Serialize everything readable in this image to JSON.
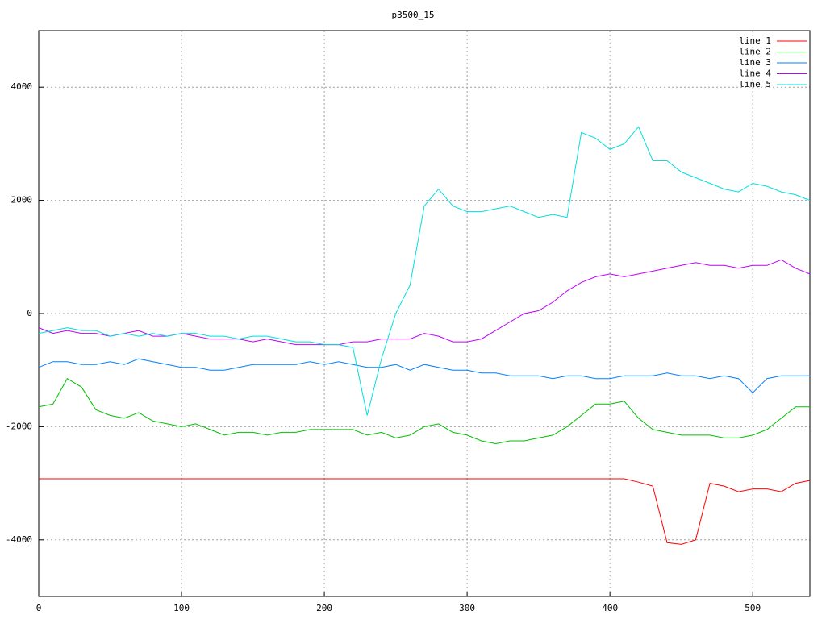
{
  "chart_data": {
    "type": "line",
    "title": "p3500_15",
    "x": [
      0,
      10,
      20,
      30,
      40,
      50,
      60,
      70,
      80,
      90,
      100,
      110,
      120,
      130,
      140,
      150,
      160,
      170,
      180,
      190,
      200,
      210,
      220,
      230,
      240,
      250,
      260,
      270,
      280,
      290,
      300,
      310,
      320,
      330,
      340,
      350,
      360,
      370,
      380,
      390,
      400,
      410,
      420,
      430,
      440,
      450,
      460,
      470,
      480,
      490,
      500,
      510,
      520,
      530,
      540
    ],
    "xlim": [
      0,
      540
    ],
    "xticks": [
      0,
      100,
      200,
      300,
      400,
      500
    ],
    "ylim": [
      -5000,
      5000
    ],
    "yticks": [
      -4000,
      -2000,
      0,
      2000,
      4000
    ],
    "grid": true,
    "legend": "top-right",
    "series": [
      {
        "name": "line 1",
        "color": "#ff0000",
        "values": [
          -2920,
          -2920,
          -2920,
          -2920,
          -2920,
          -2920,
          -2920,
          -2920,
          -2920,
          -2920,
          -2920,
          -2920,
          -2920,
          -2920,
          -2920,
          -2920,
          -2920,
          -2920,
          -2920,
          -2920,
          -2920,
          -2920,
          -2920,
          -2920,
          -2920,
          -2920,
          -2920,
          -2920,
          -2920,
          -2920,
          -2920,
          -2920,
          -2920,
          -2920,
          -2920,
          -2920,
          -2920,
          -2920,
          -2920,
          -2920,
          -2920,
          -2920,
          -2980,
          -3050,
          -4050,
          -4080,
          -4000,
          -3000,
          -3050,
          -3150,
          -3100,
          -3100,
          -3150,
          -3000,
          -2950
        ]
      },
      {
        "name": "line 2",
        "color": "#00c000",
        "values": [
          -1650,
          -1600,
          -1150,
          -1300,
          -1700,
          -1800,
          -1850,
          -1750,
          -1900,
          -1950,
          -2000,
          -1950,
          -2050,
          -2150,
          -2100,
          -2100,
          -2150,
          -2100,
          -2100,
          -2050,
          -2050,
          -2050,
          -2050,
          -2150,
          -2100,
          -2200,
          -2150,
          -2000,
          -1950,
          -2100,
          -2150,
          -2250,
          -2300,
          -2250,
          -2250,
          -2200,
          -2150,
          -2000,
          -1800,
          -1600,
          -1600,
          -1550,
          -1850,
          -2050,
          -2100,
          -2150,
          -2150,
          -2150,
          -2200,
          -2200,
          -2150,
          -2050,
          -1850,
          -1650,
          -1650
        ]
      },
      {
        "name": "line 3",
        "color": "#0080ff",
        "values": [
          -950,
          -850,
          -850,
          -900,
          -900,
          -850,
          -900,
          -800,
          -850,
          -900,
          -950,
          -950,
          -1000,
          -1000,
          -950,
          -900,
          -900,
          -900,
          -900,
          -850,
          -900,
          -850,
          -900,
          -950,
          -950,
          -900,
          -1000,
          -900,
          -950,
          -1000,
          -1000,
          -1050,
          -1050,
          -1100,
          -1100,
          -1100,
          -1150,
          -1100,
          -1100,
          -1150,
          -1150,
          -1100,
          -1100,
          -1100,
          -1050,
          -1100,
          -1100,
          -1150,
          -1100,
          -1150,
          -1400,
          -1150,
          -1100,
          -1100,
          -1100
        ]
      },
      {
        "name": "line 4",
        "color": "#c000ff",
        "values": [
          -250,
          -350,
          -300,
          -350,
          -350,
          -400,
          -350,
          -300,
          -400,
          -400,
          -350,
          -400,
          -450,
          -450,
          -450,
          -500,
          -450,
          -500,
          -550,
          -550,
          -550,
          -550,
          -500,
          -500,
          -450,
          -450,
          -450,
          -350,
          -400,
          -500,
          -500,
          -450,
          -300,
          -150,
          0,
          50,
          200,
          400,
          550,
          650,
          700,
          650,
          700,
          750,
          800,
          850,
          900,
          850,
          850,
          800,
          850,
          850,
          950,
          800,
          700
        ]
      },
      {
        "name": "line 5",
        "color": "#00dede",
        "values": [
          -350,
          -300,
          -250,
          -300,
          -300,
          -400,
          -350,
          -400,
          -350,
          -400,
          -350,
          -350,
          -400,
          -400,
          -450,
          -400,
          -400,
          -450,
          -500,
          -500,
          -550,
          -550,
          -600,
          -1800,
          -800,
          0,
          500,
          1900,
          2200,
          1900,
          1800,
          1800,
          1850,
          1900,
          1800,
          1700,
          1750,
          1700,
          3200,
          3100,
          2900,
          3000,
          3300,
          2700,
          2700,
          2500,
          2400,
          2300,
          2200,
          2150,
          2300,
          2250,
          2150,
          2100,
          2000
        ]
      }
    ]
  }
}
